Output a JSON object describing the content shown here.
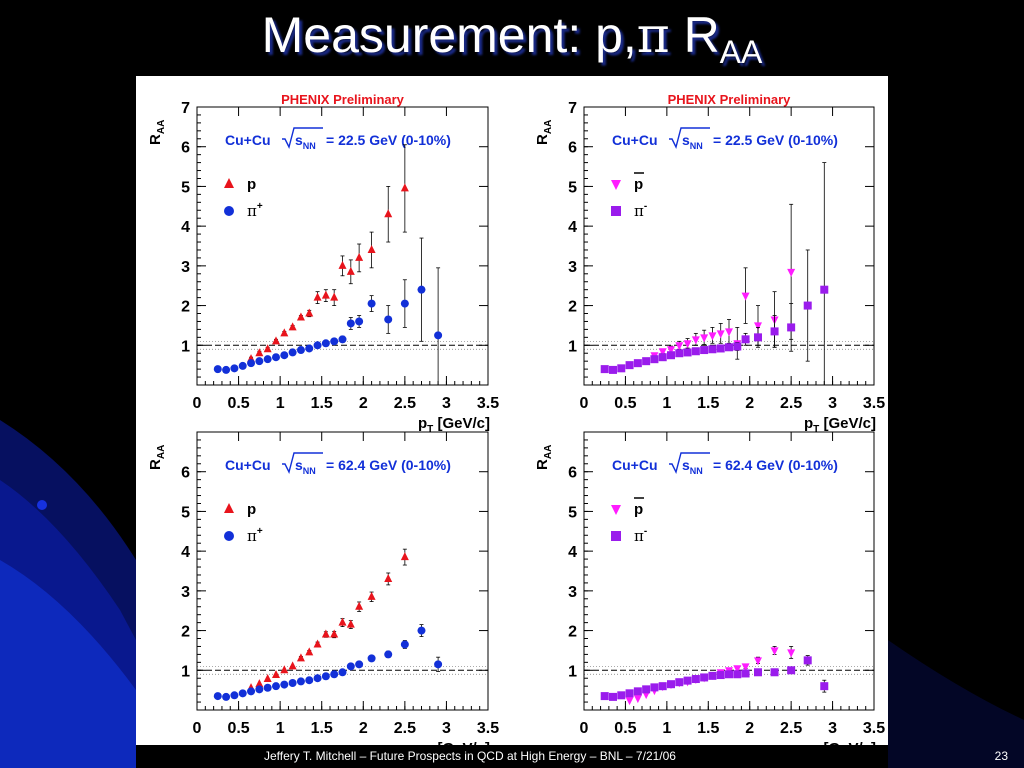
{
  "slide": {
    "title_main": "Measurement: p,",
    "title_pi": "π",
    "title_R": " R",
    "title_sub": "AA",
    "footer": "Jeffery T. Mitchell – Future Prospects in QCD at High Energy – BNL – 7/21/06",
    "page_number": "23"
  },
  "chart_data": [
    {
      "type": "scatter",
      "header": "PHENIX Preliminary",
      "system": "Cu+Cu",
      "energy": "= 22.5 GeV (0-10%)",
      "xlabel": "pT [GeV/c]",
      "ylabel": "RAA",
      "xlim": [
        0,
        3.5
      ],
      "ylim": [
        0,
        7
      ],
      "xticks": [
        "0",
        "0.5",
        "1",
        "1.5",
        "2",
        "2.5",
        "3",
        "3.5"
      ],
      "yticks": [
        "1",
        "2",
        "3",
        "4",
        "5",
        "6",
        "7"
      ],
      "series": [
        {
          "name": "p",
          "color": "#e8141c",
          "marker": "triangle-up",
          "x": [
            0.65,
            0.75,
            0.85,
            0.95,
            1.05,
            1.15,
            1.25,
            1.35,
            1.45,
            1.55,
            1.65,
            1.75,
            1.85,
            1.95,
            2.1,
            2.3,
            2.5
          ],
          "y": [
            0.65,
            0.8,
            0.9,
            1.1,
            1.3,
            1.45,
            1.7,
            1.8,
            2.2,
            2.25,
            2.2,
            3.0,
            2.85,
            3.2,
            3.4,
            4.3,
            4.95
          ],
          "err": [
            0.05,
            0.05,
            0.05,
            0.05,
            0.05,
            0.05,
            0.05,
            0.08,
            0.15,
            0.15,
            0.2,
            0.25,
            0.3,
            0.35,
            0.45,
            0.7,
            1.1
          ]
        },
        {
          "name": "π+",
          "color": "#1230d8",
          "marker": "circle",
          "x": [
            0.25,
            0.35,
            0.45,
            0.55,
            0.65,
            0.75,
            0.85,
            0.95,
            1.05,
            1.15,
            1.25,
            1.35,
            1.45,
            1.55,
            1.65,
            1.75,
            1.85,
            1.95,
            2.1,
            2.3,
            2.5,
            2.7,
            2.9
          ],
          "y": [
            0.4,
            0.38,
            0.42,
            0.48,
            0.55,
            0.6,
            0.65,
            0.7,
            0.75,
            0.82,
            0.88,
            0.92,
            1.0,
            1.05,
            1.1,
            1.15,
            1.55,
            1.6,
            2.05,
            1.65,
            2.05,
            2.4,
            1.25
          ],
          "err": [
            0.02,
            0.02,
            0.02,
            0.02,
            0.02,
            0.02,
            0.02,
            0.02,
            0.02,
            0.03,
            0.03,
            0.04,
            0.05,
            0.05,
            0.06,
            0.08,
            0.15,
            0.15,
            0.2,
            0.35,
            0.6,
            1.3,
            1.7
          ]
        }
      ]
    },
    {
      "type": "scatter",
      "header": "PHENIX Preliminary",
      "system": "Cu+Cu",
      "energy": "= 22.5 GeV (0-10%)",
      "xlabel": "pT [GeV/c]",
      "ylabel": "RAA",
      "xlim": [
        0,
        3.5
      ],
      "ylim": [
        0,
        7
      ],
      "xticks": [
        "0",
        "0.5",
        "1",
        "1.5",
        "2",
        "2.5",
        "3",
        "3.5"
      ],
      "yticks": [
        "1",
        "2",
        "3",
        "4",
        "5",
        "6",
        "7"
      ],
      "series": [
        {
          "name": "p̄",
          "color": "#ff1cff",
          "marker": "triangle-down",
          "x": [
            0.85,
            0.95,
            1.05,
            1.15,
            1.25,
            1.35,
            1.45,
            1.55,
            1.65,
            1.75,
            1.85,
            1.95,
            2.1,
            2.3,
            2.5
          ],
          "y": [
            0.75,
            0.85,
            0.9,
            1.0,
            1.05,
            1.15,
            1.2,
            1.25,
            1.3,
            1.35,
            1.05,
            2.25,
            1.5,
            1.65,
            2.85
          ],
          "err": [
            0.05,
            0.05,
            0.08,
            0.1,
            0.12,
            0.15,
            0.18,
            0.2,
            0.25,
            0.3,
            0.4,
            0.7,
            0.5,
            0.7,
            1.7
          ]
        },
        {
          "name": "π-",
          "color": "#9a1cec",
          "marker": "square",
          "x": [
            0.25,
            0.35,
            0.45,
            0.55,
            0.65,
            0.75,
            0.85,
            0.95,
            1.05,
            1.15,
            1.25,
            1.35,
            1.45,
            1.55,
            1.65,
            1.75,
            1.85,
            1.95,
            2.1,
            2.3,
            2.5,
            2.7,
            2.9
          ],
          "y": [
            0.4,
            0.38,
            0.42,
            0.5,
            0.55,
            0.6,
            0.65,
            0.7,
            0.75,
            0.8,
            0.82,
            0.85,
            0.88,
            0.9,
            0.92,
            0.95,
            0.97,
            1.15,
            1.2,
            1.35,
            1.45,
            2.0,
            2.4
          ],
          "err": [
            0.02,
            0.02,
            0.02,
            0.02,
            0.02,
            0.02,
            0.02,
            0.02,
            0.03,
            0.03,
            0.04,
            0.05,
            0.05,
            0.06,
            0.07,
            0.08,
            0.1,
            0.15,
            0.25,
            0.4,
            0.6,
            1.4,
            3.2
          ]
        }
      ]
    },
    {
      "type": "scatter",
      "system": "Cu+Cu",
      "energy": "= 62.4 GeV (0-10%)",
      "xlabel": "pT [GeV/c]",
      "ylabel": "RAA",
      "xlim": [
        0,
        3.5
      ],
      "ylim": [
        0,
        7
      ],
      "xticks": [
        "0",
        "0.5",
        "1",
        "1.5",
        "2",
        "2.5",
        "3",
        "3.5"
      ],
      "yticks": [
        "1",
        "2",
        "3",
        "4",
        "5",
        "6"
      ],
      "series": [
        {
          "name": "p",
          "color": "#e8141c",
          "marker": "triangle-up",
          "x": [
            0.65,
            0.75,
            0.85,
            0.95,
            1.05,
            1.15,
            1.25,
            1.35,
            1.45,
            1.55,
            1.65,
            1.75,
            1.85,
            1.95,
            2.1,
            2.3,
            2.5
          ],
          "y": [
            0.55,
            0.65,
            0.78,
            0.88,
            1.0,
            1.1,
            1.3,
            1.45,
            1.65,
            1.9,
            1.9,
            2.2,
            2.15,
            2.6,
            2.85,
            3.3,
            3.85
          ],
          "err": [
            0.03,
            0.03,
            0.03,
            0.03,
            0.04,
            0.04,
            0.05,
            0.05,
            0.06,
            0.07,
            0.08,
            0.1,
            0.1,
            0.12,
            0.12,
            0.15,
            0.2
          ]
        },
        {
          "name": "π+",
          "color": "#1230d8",
          "marker": "circle",
          "x": [
            0.25,
            0.35,
            0.45,
            0.55,
            0.65,
            0.75,
            0.85,
            0.95,
            1.05,
            1.15,
            1.25,
            1.35,
            1.45,
            1.55,
            1.65,
            1.75,
            1.85,
            1.95,
            2.1,
            2.3,
            2.5,
            2.7,
            2.9
          ],
          "y": [
            0.35,
            0.33,
            0.37,
            0.42,
            0.47,
            0.52,
            0.56,
            0.6,
            0.64,
            0.68,
            0.72,
            0.75,
            0.8,
            0.85,
            0.9,
            0.95,
            1.1,
            1.15,
            1.3,
            1.4,
            1.65,
            2.0,
            1.15
          ],
          "err": [
            0.02,
            0.02,
            0.02,
            0.02,
            0.02,
            0.02,
            0.02,
            0.02,
            0.02,
            0.02,
            0.02,
            0.03,
            0.03,
            0.03,
            0.03,
            0.04,
            0.05,
            0.05,
            0.06,
            0.08,
            0.1,
            0.15,
            0.18
          ]
        }
      ]
    },
    {
      "type": "scatter",
      "system": "Cu+Cu",
      "energy": "= 62.4 GeV (0-10%)",
      "xlabel": "pT [GeV/c]",
      "ylabel": "RAA",
      "xlim": [
        0,
        3.5
      ],
      "ylim": [
        0,
        7
      ],
      "xticks": [
        "0",
        "0.5",
        "1",
        "1.5",
        "2",
        "2.5",
        "3",
        "3.5"
      ],
      "yticks": [
        "1",
        "2",
        "3",
        "4",
        "5",
        "6"
      ],
      "series": [
        {
          "name": "p̄",
          "color": "#ff1cff",
          "marker": "triangle-down",
          "x": [
            0.55,
            0.65,
            0.75,
            0.85,
            0.95,
            1.05,
            1.15,
            1.25,
            1.35,
            1.45,
            1.55,
            1.65,
            1.75,
            1.85,
            1.95,
            2.1,
            2.3,
            2.5
          ],
          "y": [
            0.25,
            0.3,
            0.4,
            0.5,
            0.6,
            0.65,
            0.7,
            0.72,
            0.78,
            0.82,
            0.88,
            0.95,
            1.0,
            1.05,
            1.1,
            1.25,
            1.5,
            1.45
          ],
          "err": [
            0.03,
            0.03,
            0.03,
            0.03,
            0.03,
            0.03,
            0.04,
            0.04,
            0.04,
            0.05,
            0.05,
            0.05,
            0.06,
            0.06,
            0.06,
            0.08,
            0.1,
            0.15
          ]
        },
        {
          "name": "π-",
          "color": "#9a1cec",
          "marker": "square",
          "x": [
            0.25,
            0.35,
            0.45,
            0.55,
            0.65,
            0.75,
            0.85,
            0.95,
            1.05,
            1.15,
            1.25,
            1.35,
            1.45,
            1.55,
            1.65,
            1.75,
            1.85,
            1.95,
            2.1,
            2.3,
            2.5,
            2.7,
            2.9
          ],
          "y": [
            0.35,
            0.33,
            0.37,
            0.42,
            0.47,
            0.52,
            0.57,
            0.6,
            0.65,
            0.7,
            0.74,
            0.78,
            0.82,
            0.86,
            0.88,
            0.9,
            0.9,
            0.92,
            0.95,
            0.95,
            1.0,
            1.25,
            0.6
          ],
          "err": [
            0.02,
            0.02,
            0.02,
            0.02,
            0.02,
            0.02,
            0.02,
            0.02,
            0.02,
            0.02,
            0.02,
            0.03,
            0.03,
            0.03,
            0.03,
            0.04,
            0.04,
            0.05,
            0.05,
            0.06,
            0.08,
            0.12,
            0.15
          ]
        }
      ]
    }
  ]
}
